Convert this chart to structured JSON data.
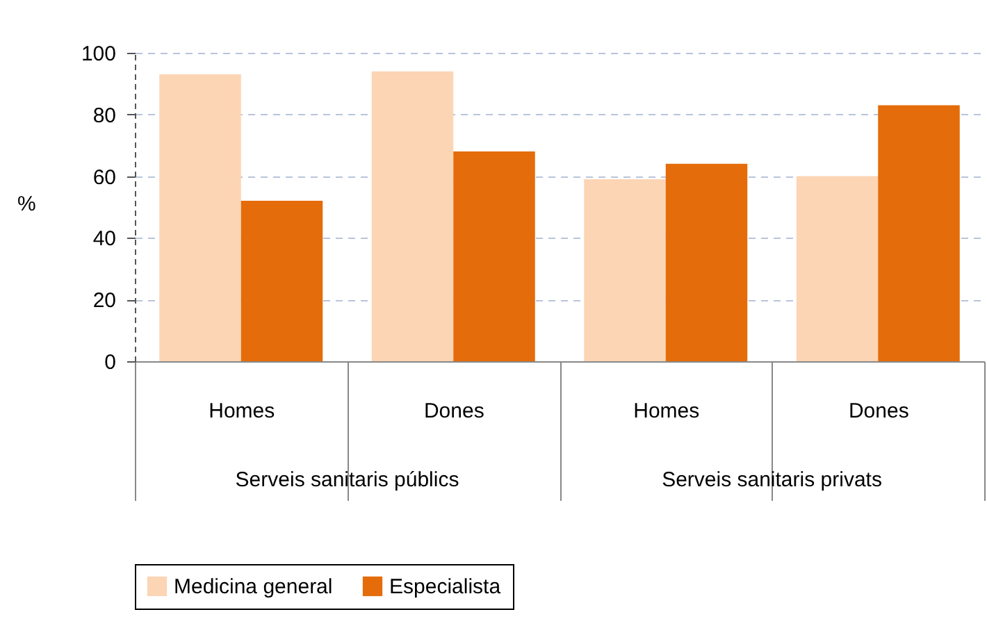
{
  "chart_data": {
    "type": "bar",
    "ylabel": "%",
    "categories": [
      "Homes",
      "Dones",
      "Homes",
      "Dones"
    ],
    "series": [
      {
        "name": "Medicina general",
        "color": "#fcd5b5",
        "values": [
          93,
          94,
          59,
          60
        ]
      },
      {
        "name": "Especialista",
        "color": "#e46c0a",
        "values": [
          52,
          68,
          64,
          83
        ]
      }
    ],
    "ylim": [
      0,
      100
    ],
    "yticks": [
      0,
      20,
      40,
      60,
      80,
      100
    ],
    "grid": "y",
    "legend": "bottom",
    "annotations": [
      "Serveis sanitaris públics",
      "Serveis sanitaris privats"
    ]
  }
}
